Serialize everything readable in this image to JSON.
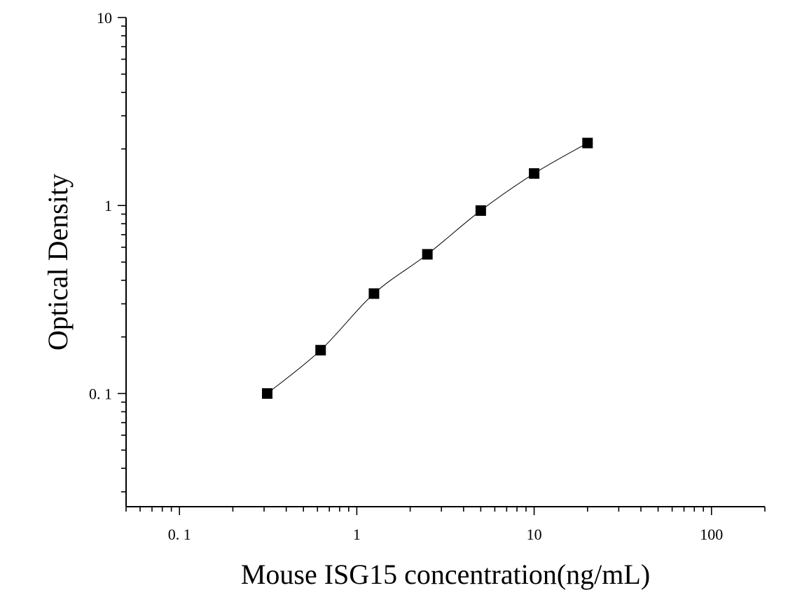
{
  "chart_data": {
    "type": "scatter",
    "title": "",
    "xlabel": "Mouse ISG15 concentration(ng/mL)",
    "ylabel": "Optical Density",
    "xscale": "log",
    "yscale": "log",
    "xlim": [
      0.05,
      200
    ],
    "ylim": [
      0.025,
      10
    ],
    "x_tick_values": [
      0.1,
      1,
      10,
      100
    ],
    "x_tick_labels": [
      "0. 1",
      "1",
      "10",
      "100"
    ],
    "y_tick_values": [
      0.1,
      1,
      10
    ],
    "y_tick_labels": [
      "0. 1",
      "1",
      "10"
    ],
    "grid": false,
    "legend": "none",
    "series": [
      {
        "marker": "square",
        "fit_curve": true,
        "x": [
          0.3125,
          0.625,
          1.25,
          2.5,
          5,
          10,
          20
        ],
        "y": [
          0.1,
          0.17,
          0.34,
          0.55,
          0.94,
          1.48,
          2.15
        ]
      }
    ]
  }
}
